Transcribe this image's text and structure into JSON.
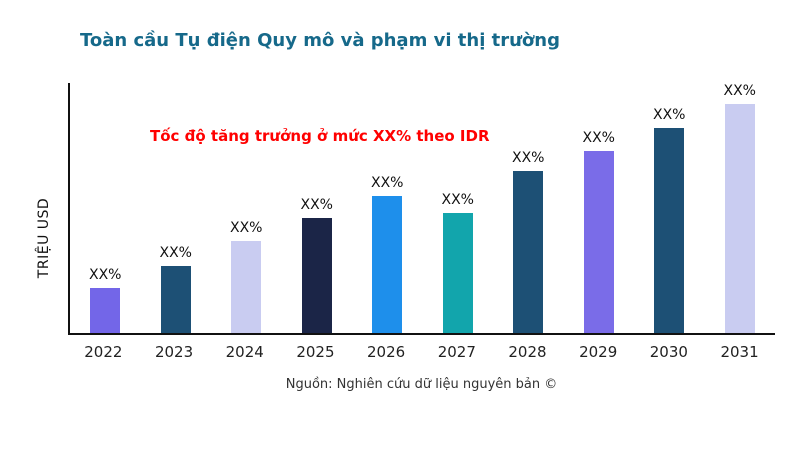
{
  "page": {
    "source": "Nguồn: Nghiên cứu dữ liệu nguyên bản ©"
  },
  "chart_data": {
    "type": "bar",
    "title": "Toàn cầu Tụ điện Quy mô và phạm vi thị trường",
    "ylabel": "TRIỆU USD",
    "xlabel": "",
    "annotation": "Tốc độ tăng trưởng ở mức XX% theo IDR",
    "categories": [
      "2022",
      "2023",
      "2024",
      "2025",
      "2026",
      "2027",
      "2028",
      "2029",
      "2030",
      "2031"
    ],
    "values": [
      18,
      27,
      37,
      46,
      55,
      48,
      65,
      73,
      82,
      92
    ],
    "value_labels": [
      "XX%",
      "XX%",
      "XX%",
      "XX%",
      "XX%",
      "XX%",
      "XX%",
      "XX%",
      "XX%",
      "XX%"
    ],
    "bar_colors": [
      "#7366E8",
      "#1D5075",
      "#C9CCF1",
      "#1B2547",
      "#1E8FEB",
      "#12A5AC",
      "#1D5075",
      "#7A6CE8",
      "#1D5075",
      "#C9CCF1"
    ],
    "ylim": [
      0,
      100
    ],
    "grid": false,
    "legend": false,
    "title_color": "#16698A",
    "annotation_color": "#FF0000",
    "axis_color": "#111111"
  }
}
